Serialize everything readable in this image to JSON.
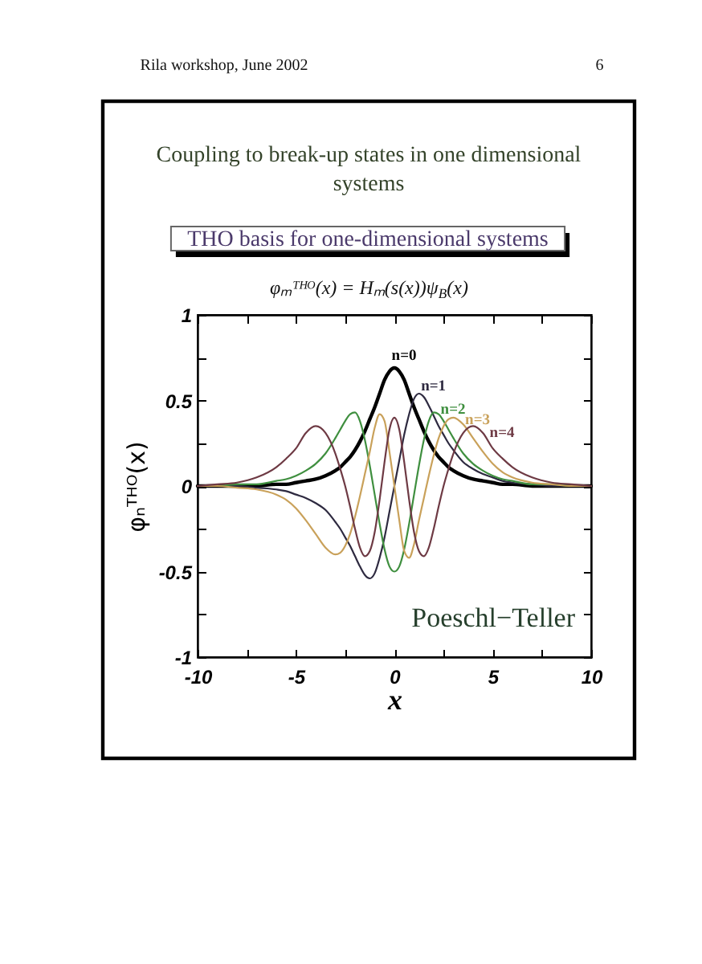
{
  "chart_data": {
    "type": "line",
    "title": "Coupling to break-up states in one dimensional systems",
    "subtitle": "THO basis for one-dimensional systems",
    "xlabel": "x",
    "ylabel": "φₙᵀᴴᴼ(x)",
    "annotations": [
      "Rila workshop, June 2002",
      "6",
      "φₘᵀᴴᴼ(x) = Hₘ(s(x))ψ$_{B}$(x)",
      "Poeschl−Teller"
    ],
    "x": [
      -10,
      -9,
      -8,
      -7,
      -6,
      -5.5,
      -5,
      -4.5,
      -4,
      -3.5,
      -3,
      -2.75,
      -2.5,
      -2.25,
      -2,
      -1.75,
      -1.5,
      -1.25,
      -1,
      -0.75,
      -0.5,
      -0.25,
      0,
      0.25,
      0.5,
      0.75,
      1,
      1.25,
      1.5,
      1.75,
      2,
      2.25,
      2.5,
      2.75,
      3,
      3.5,
      4,
      4.5,
      5,
      5.5,
      6,
      7,
      8,
      9,
      10
    ],
    "series": [
      {
        "name": "n=0",
        "color": "#000000",
        "values": [
          0,
          0,
          0,
          0,
          0.01,
          0.01,
          0.02,
          0.03,
          0.04,
          0.06,
          0.09,
          0.11,
          0.14,
          0.17,
          0.21,
          0.26,
          0.32,
          0.39,
          0.46,
          0.54,
          0.62,
          0.67,
          0.69,
          0.67,
          0.62,
          0.54,
          0.46,
          0.39,
          0.32,
          0.26,
          0.21,
          0.17,
          0.14,
          0.11,
          0.09,
          0.06,
          0.04,
          0.03,
          0.02,
          0.01,
          0.01,
          0,
          0,
          0,
          0
        ]
      },
      {
        "name": "n=1",
        "color": "#2e2a40",
        "values": [
          0,
          0,
          0,
          -0.01,
          -0.02,
          -0.03,
          -0.05,
          -0.07,
          -0.1,
          -0.14,
          -0.21,
          -0.25,
          -0.3,
          -0.35,
          -0.41,
          -0.47,
          -0.52,
          -0.54,
          -0.51,
          -0.42,
          -0.3,
          -0.15,
          0,
          0.15,
          0.3,
          0.42,
          0.51,
          0.54,
          0.52,
          0.47,
          0.41,
          0.35,
          0.3,
          0.25,
          0.21,
          0.14,
          0.1,
          0.07,
          0.05,
          0.03,
          0.02,
          0.01,
          0,
          0,
          0
        ]
      },
      {
        "name": "n=2",
        "color": "#3f8f3f",
        "values": [
          0,
          0,
          0.01,
          0.01,
          0.03,
          0.04,
          0.06,
          0.09,
          0.13,
          0.19,
          0.28,
          0.33,
          0.38,
          0.42,
          0.43,
          0.38,
          0.27,
          0.12,
          -0.05,
          -0.22,
          -0.37,
          -0.47,
          -0.5,
          -0.47,
          -0.37,
          -0.22,
          -0.05,
          0.12,
          0.27,
          0.38,
          0.43,
          0.42,
          0.38,
          0.33,
          0.28,
          0.19,
          0.13,
          0.09,
          0.06,
          0.04,
          0.03,
          0.01,
          0.01,
          0,
          0
        ]
      },
      {
        "name": "n=3",
        "color": "#c9a15a",
        "values": [
          0,
          0,
          -0.01,
          -0.02,
          -0.05,
          -0.08,
          -0.13,
          -0.2,
          -0.28,
          -0.36,
          -0.4,
          -0.39,
          -0.35,
          -0.28,
          -0.18,
          -0.06,
          0.07,
          0.2,
          0.34,
          0.42,
          0.38,
          0.2,
          0,
          -0.2,
          -0.38,
          -0.42,
          -0.34,
          -0.2,
          -0.07,
          0.06,
          0.18,
          0.28,
          0.35,
          0.39,
          0.4,
          0.36,
          0.28,
          0.2,
          0.13,
          0.08,
          0.05,
          0.02,
          0.01,
          0,
          0
        ]
      },
      {
        "name": "n=4",
        "color": "#6e3a44",
        "values": [
          0,
          0.01,
          0.02,
          0.05,
          0.11,
          0.16,
          0.22,
          0.31,
          0.35,
          0.31,
          0.19,
          0.1,
          0,
          -0.12,
          -0.25,
          -0.36,
          -0.41,
          -0.38,
          -0.27,
          -0.08,
          0.14,
          0.33,
          0.4,
          0.33,
          0.14,
          -0.08,
          -0.27,
          -0.38,
          -0.41,
          -0.36,
          -0.25,
          -0.12,
          0,
          0.1,
          0.19,
          0.31,
          0.35,
          0.31,
          0.22,
          0.16,
          0.11,
          0.05,
          0.02,
          0.01,
          0
        ]
      }
    ],
    "xlim": [
      -10,
      10
    ],
    "ylim": [
      -1,
      1
    ],
    "xticks": [
      -10,
      {
        "value": -7.5,
        "label": null
      },
      -5,
      {
        "value": -2.5,
        "label": null
      },
      0,
      {
        "value": 2.5,
        "label": null
      },
      5,
      {
        "value": 7.5,
        "label": null
      },
      10
    ],
    "yticks": [
      -1,
      {
        "value": -0.75,
        "label": null
      },
      -0.5,
      {
        "value": -0.25,
        "label": null
      },
      0,
      {
        "value": 0.25,
        "label": null
      },
      0.5,
      {
        "value": 0.75,
        "label": null
      },
      1
    ]
  }
}
